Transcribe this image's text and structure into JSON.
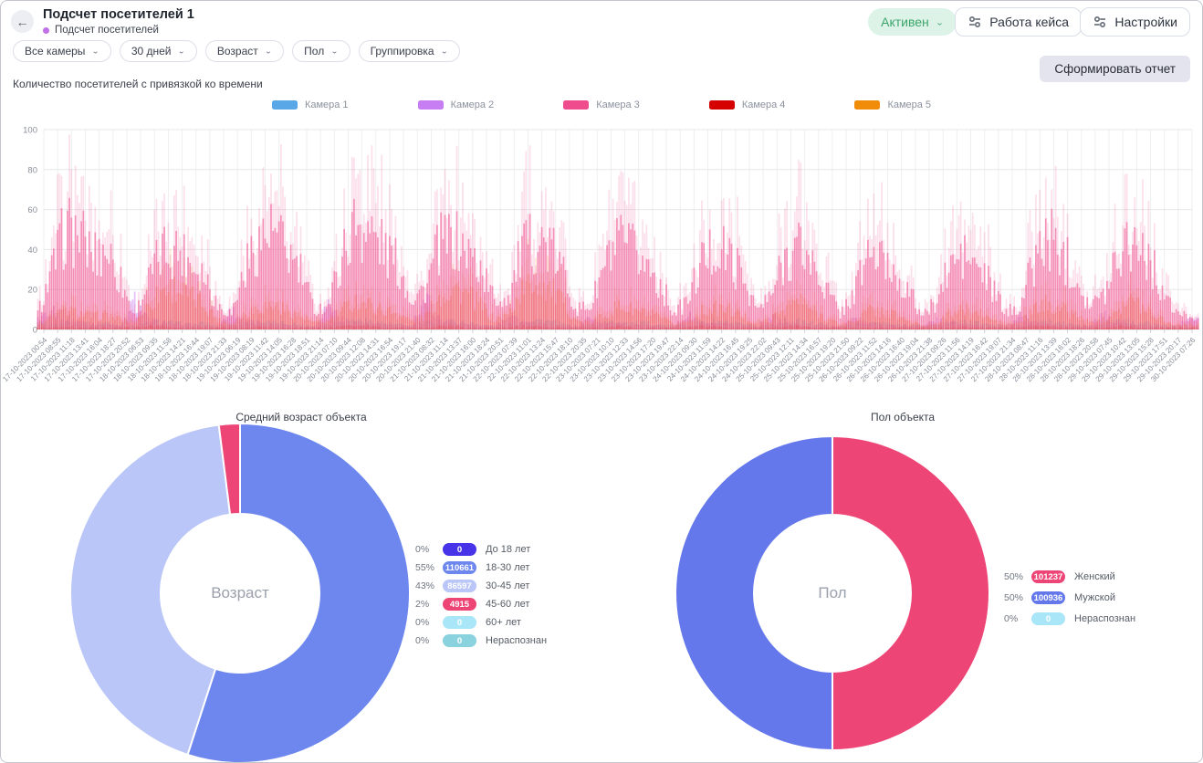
{
  "header": {
    "title": "Подсчет посетителей 1",
    "subtitle": "Подсчет посетителей",
    "back_icon": "←",
    "status": {
      "label": "Активен",
      "bg": "#def3e8",
      "color": "#3ba56c"
    },
    "buttons": [
      {
        "label": "Работа кейса"
      },
      {
        "label": "Настройки"
      }
    ]
  },
  "filters": {
    "items": [
      "Все камеры",
      "30 дней",
      "Возраст",
      "Пол",
      "Группировка"
    ]
  },
  "toolbar": {
    "report_label": "Сформировать отчет"
  },
  "chart_data": [
    {
      "type": "bar",
      "title": "Количество посетителей с привязкой ко времени",
      "ylabel": "",
      "xlabel": "",
      "ylim": [
        0,
        100
      ],
      "yticks": [
        0,
        20,
        40,
        60,
        80,
        100
      ],
      "grid": true,
      "legend_position": "top",
      "x": [
        "17-10-2023 00:54",
        "17-10-2023 08:55",
        "17-10-2023 11:18",
        "17-10-2023 13:41",
        "17-10-2023 16:04",
        "17-10-2023 18:27",
        "17-10-2023 20:52",
        "18-10-2023 06:53",
        "18-10-2023 09:35",
        "18-10-2023 11:58",
        "18-10-2023 14:21",
        "18-10-2023 16:44",
        "18-10-2023 19:07",
        "18-10-2023 21:33",
        "19-10-2023 06:19",
        "19-10-2023 08:19",
        "19-10-2023 11:42",
        "19-10-2023 14:05",
        "19-10-2023 16:28",
        "19-10-2023 18:51",
        "19-10-2023 21:14",
        "20-10-2023 07:10",
        "20-10-2023 09:44",
        "20-10-2023 12:08",
        "20-10-2023 14:31",
        "20-10-2023 16:54",
        "20-10-2023 19:17",
        "20-10-2023 21:40",
        "21-10-2023 08:32",
        "21-10-2023 11:14",
        "21-10-2023 13:37",
        "21-10-2023 16:00",
        "21-10-2023 18:24",
        "21-10-2023 20:51",
        "22-10-2023 07:39",
        "22-10-2023 11:01",
        "22-10-2023 13:24",
        "22-10-2023 15:47",
        "22-10-2023 18:10",
        "22-10-2023 20:35",
        "23-10-2023 07:21",
        "23-10-2023 10:10",
        "23-10-2023 12:33",
        "23-10-2023 14:56",
        "23-10-2023 17:20",
        "23-10-2023 19:47",
        "23-10-2023 22:14",
        "24-10-2023 09:30",
        "24-10-2023 11:59",
        "24-10-2023 14:22",
        "24-10-2023 16:45",
        "24-10-2023 19:25",
        "24-10-2023 22:02",
        "25-10-2023 09:43",
        "25-10-2023 12:11",
        "25-10-2023 14:34",
        "25-10-2023 16:57",
        "25-10-2023 19:20",
        "25-10-2023 21:50",
        "26-10-2023 09:22",
        "26-10-2023 11:52",
        "26-10-2023 14:16",
        "26-10-2023 16:40",
        "26-10-2023 19:04",
        "26-10-2023 21:38",
        "27-10-2023 09:26",
        "27-10-2023 11:56",
        "27-10-2023 14:19",
        "27-10-2023 16:42",
        "27-10-2023 19:07",
        "27-10-2023 21:34",
        "28-10-2023 08:47",
        "28-10-2023 11:16",
        "28-10-2023 13:39",
        "28-10-2023 16:02",
        "28-10-2023 18:26",
        "28-10-2023 20:58",
        "29-10-2023 07:45",
        "29-10-2023 10:42",
        "29-10-2023 13:05",
        "29-10-2023 15:28",
        "29-10-2023 17:51",
        "29-10-2023 20:17",
        "30-10-2023 07:26"
      ],
      "series": [
        {
          "name": "Камера 1",
          "color": "#5aa7e8",
          "values": [
            4,
            3,
            5,
            4,
            3,
            4,
            3,
            2,
            4,
            5,
            4,
            3,
            4,
            2,
            3,
            4,
            5,
            4,
            4,
            3,
            2,
            3,
            5,
            6,
            5,
            4,
            3,
            2,
            4,
            5,
            5,
            4,
            3,
            2,
            3,
            5,
            6,
            5,
            3,
            2,
            3,
            4,
            5,
            4,
            4,
            3,
            2,
            3,
            4,
            5,
            4,
            3,
            2,
            3,
            5,
            5,
            4,
            3,
            2,
            3,
            4,
            4,
            3,
            3,
            2,
            3,
            4,
            5,
            4,
            3,
            2,
            3,
            4,
            5,
            4,
            3,
            2,
            3,
            5,
            5,
            4,
            3,
            2,
            2
          ]
        },
        {
          "name": "Камера 2",
          "color": "#c77ef2",
          "values": [
            6,
            14,
            8,
            5,
            4,
            3,
            2,
            18,
            6,
            4,
            3,
            3,
            2,
            2,
            12,
            5,
            4,
            3,
            3,
            2,
            2,
            16,
            6,
            4,
            3,
            3,
            2,
            2,
            20,
            7,
            4,
            3,
            2,
            2,
            10,
            5,
            3,
            3,
            2,
            2,
            8,
            4,
            3,
            3,
            2,
            2,
            2,
            9,
            4,
            3,
            3,
            2,
            2,
            8,
            4,
            3,
            2,
            2,
            2,
            7,
            4,
            3,
            2,
            2,
            2,
            6,
            4,
            3,
            2,
            2,
            2,
            8,
            5,
            3,
            2,
            2,
            2,
            9,
            5,
            3,
            2,
            2,
            2,
            6
          ]
        },
        {
          "name": "Камера 3",
          "color": "#ee4c8c",
          "values": [
            10,
            35,
            62,
            58,
            45,
            50,
            30,
            8,
            30,
            48,
            50,
            42,
            35,
            15,
            10,
            38,
            55,
            60,
            48,
            35,
            12,
            15,
            45,
            67,
            60,
            50,
            40,
            20,
            25,
            52,
            55,
            48,
            38,
            18,
            20,
            48,
            55,
            50,
            35,
            12,
            15,
            40,
            52,
            48,
            40,
            28,
            10,
            18,
            42,
            50,
            45,
            32,
            12,
            20,
            45,
            52,
            40,
            25,
            10,
            22,
            48,
            42,
            35,
            22,
            8,
            18,
            40,
            45,
            38,
            25,
            10,
            15,
            42,
            57,
            48,
            35,
            15,
            20,
            48,
            58,
            50,
            30,
            12,
            8
          ]
        },
        {
          "name": "Камера 4",
          "color": "#d50000",
          "values": [
            1,
            1,
            2,
            1,
            1,
            1,
            1,
            1,
            2,
            2,
            1,
            1,
            1,
            1,
            1,
            1,
            2,
            1,
            1,
            1,
            1,
            1,
            2,
            2,
            2,
            1,
            1,
            1,
            1,
            2,
            2,
            1,
            1,
            1,
            1,
            2,
            2,
            1,
            1,
            1,
            1,
            1,
            2,
            1,
            1,
            1,
            1,
            1,
            2,
            2,
            1,
            1,
            1,
            1,
            2,
            2,
            1,
            1,
            1,
            1,
            1,
            1,
            1,
            1,
            1,
            1,
            1,
            2,
            1,
            1,
            1,
            1,
            2,
            2,
            1,
            1,
            1,
            1,
            2,
            2,
            1,
            1,
            1,
            1
          ]
        },
        {
          "name": "Камера 5",
          "color": "#f08c0a",
          "values": [
            3,
            8,
            12,
            10,
            8,
            9,
            6,
            4,
            15,
            25,
            26,
            20,
            16,
            6,
            3,
            10,
            14,
            15,
            12,
            8,
            4,
            5,
            12,
            18,
            15,
            12,
            10,
            5,
            8,
            20,
            26,
            22,
            15,
            6,
            9,
            24,
            30,
            26,
            16,
            5,
            4,
            10,
            14,
            12,
            10,
            7,
            3,
            5,
            11,
            13,
            12,
            8,
            4,
            6,
            14,
            18,
            12,
            7,
            3,
            5,
            12,
            11,
            9,
            5,
            2,
            4,
            10,
            12,
            10,
            6,
            3,
            4,
            12,
            16,
            13,
            9,
            4,
            6,
            14,
            18,
            14,
            8,
            3,
            3
          ]
        }
      ]
    },
    {
      "type": "donut",
      "title": "Средний возраст объекта",
      "center_label": "Возраст",
      "slices": [
        {
          "label": "До 18 лет",
          "percent": 0,
          "count": "0",
          "color": "#4733e8"
        },
        {
          "label": "18-30 лет",
          "percent": 55,
          "count": "110661",
          "color": "#6d87ee"
        },
        {
          "label": "30-45 лет",
          "percent": 43,
          "count": "86597",
          "color": "#b9c6f7"
        },
        {
          "label": "45-60 лет",
          "percent": 2,
          "count": "4915",
          "color": "#ee4577"
        },
        {
          "label": "60+ лет",
          "percent": 0,
          "count": "0",
          "color": "#a8e6f8"
        },
        {
          "label": "Нераспознан",
          "percent": 0,
          "count": "0",
          "color": "#8ad2dd"
        }
      ]
    },
    {
      "type": "donut",
      "title": "Пол объекта",
      "center_label": "Пол",
      "slices": [
        {
          "label": "Женский",
          "percent": 50,
          "count": "101237",
          "color": "#ee4577"
        },
        {
          "label": "Мужской",
          "percent": 50,
          "count": "100936",
          "color": "#6478ec"
        },
        {
          "label": "Нераспознан",
          "percent": 0,
          "count": "0",
          "color": "#a8e6f8"
        }
      ]
    }
  ]
}
